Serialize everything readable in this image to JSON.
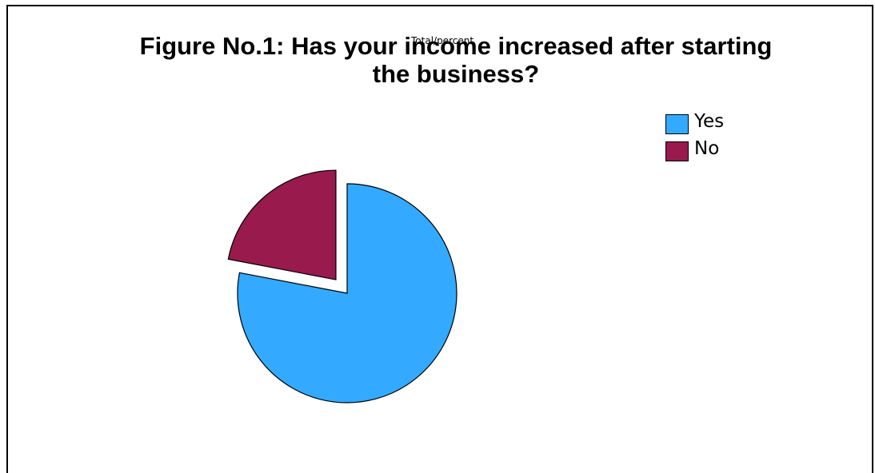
{
  "chart_data": {
    "type": "pie",
    "title": "Figure No.1: Has your income increased after starting\nthe business?",
    "overlay_label": "Total/percent",
    "legend_position": "top-right",
    "slices": [
      {
        "label": "Yes",
        "value": 78,
        "color": "#33aaff"
      },
      {
        "label": "No",
        "value": 22,
        "color": "#991a4d"
      }
    ]
  }
}
